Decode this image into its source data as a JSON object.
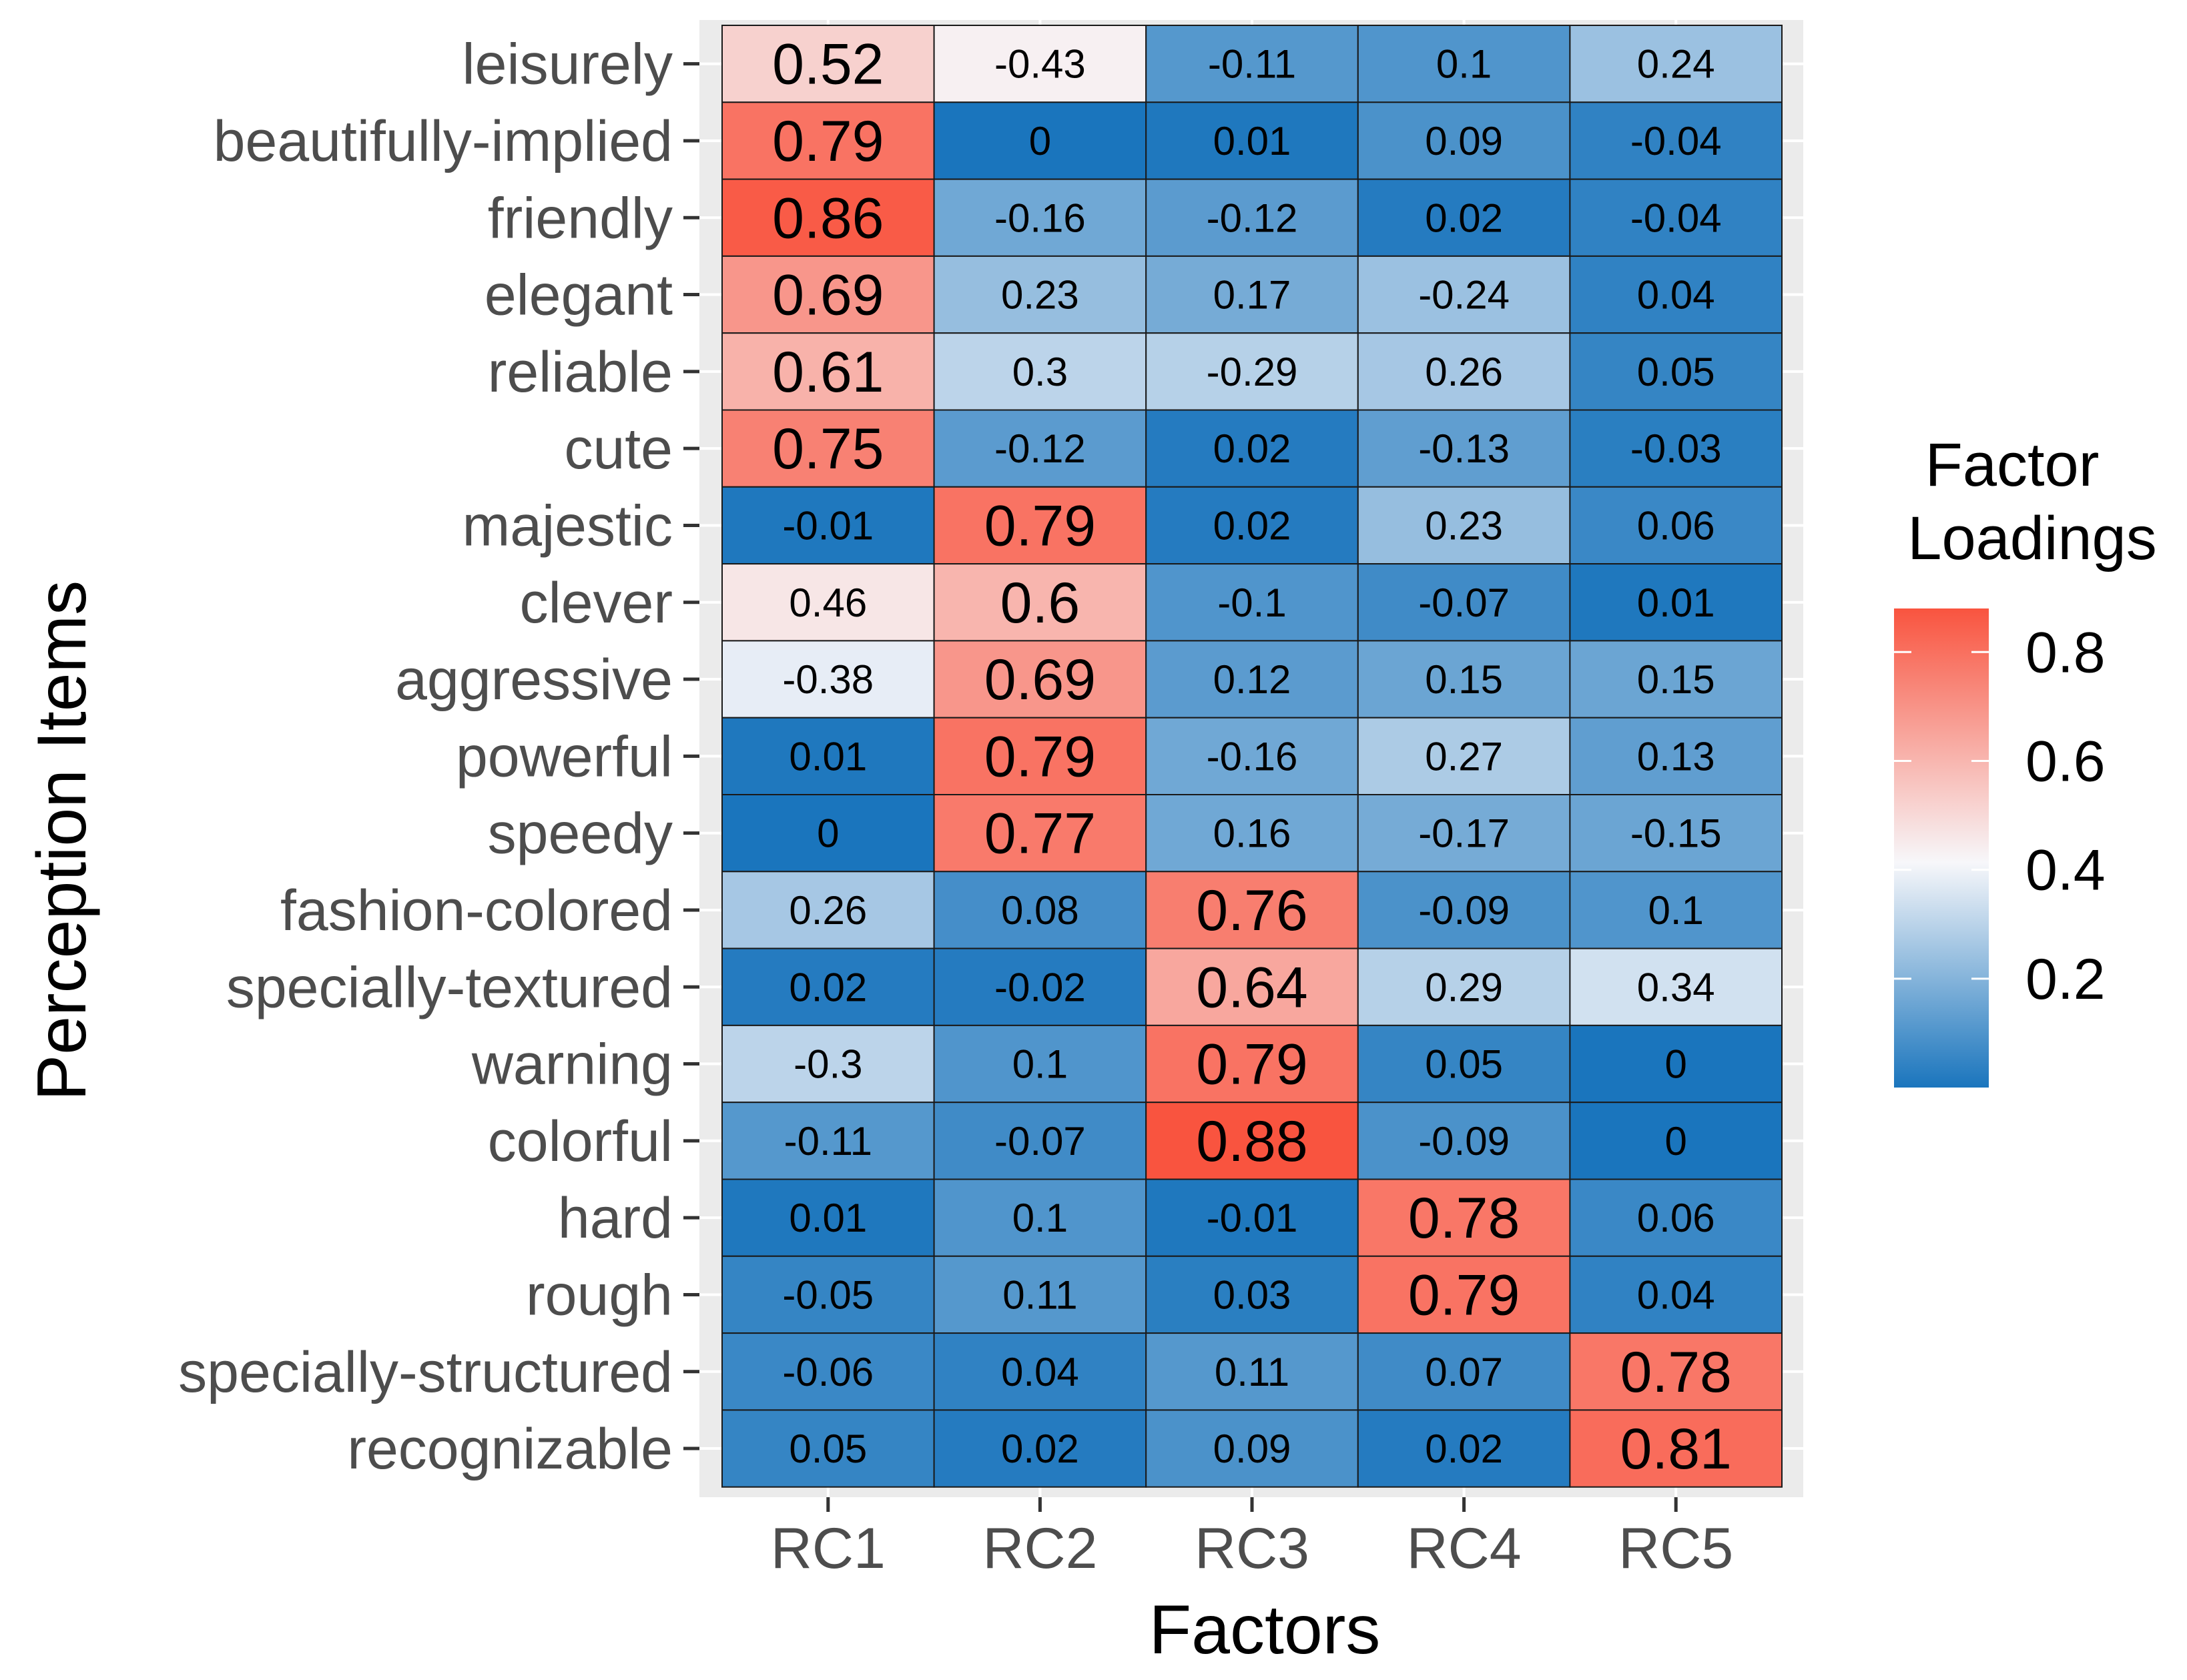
{
  "chart_data": {
    "type": "heatmap",
    "title": "",
    "xlabel": "Factors",
    "ylabel": "Perception Items",
    "x_categories": [
      "RC1",
      "RC2",
      "RC3",
      "RC4",
      "RC5"
    ],
    "y_categories": [
      "leisurely",
      "beautifully-implied",
      "friendly",
      "elegant",
      "reliable",
      "cute",
      "majestic",
      "clever",
      "aggressive",
      "powerful",
      "speedy",
      "fashion-colored",
      "specially-textured",
      "warning",
      "colorful",
      "hard",
      "rough",
      "specially-structured",
      "recognizable"
    ],
    "values": [
      [
        0.52,
        -0.43,
        -0.11,
        0.1,
        0.24
      ],
      [
        0.79,
        0,
        0.01,
        0.09,
        -0.04
      ],
      [
        0.86,
        -0.16,
        -0.12,
        0.02,
        -0.04
      ],
      [
        0.69,
        0.23,
        0.17,
        -0.24,
        0.04
      ],
      [
        0.61,
        0.3,
        -0.29,
        0.26,
        0.05
      ],
      [
        0.75,
        -0.12,
        0.02,
        -0.13,
        -0.03
      ],
      [
        -0.01,
        0.79,
        0.02,
        0.23,
        0.06
      ],
      [
        0.46,
        0.6,
        -0.1,
        -0.07,
        0.01
      ],
      [
        -0.38,
        0.69,
        0.12,
        0.15,
        0.15
      ],
      [
        0.01,
        0.79,
        -0.16,
        0.27,
        0.13
      ],
      [
        0,
        0.77,
        0.16,
        -0.17,
        -0.15
      ],
      [
        0.26,
        0.08,
        0.76,
        -0.09,
        0.1
      ],
      [
        0.02,
        -0.02,
        0.64,
        0.29,
        0.34
      ],
      [
        -0.3,
        0.1,
        0.79,
        0.05,
        0
      ],
      [
        -0.11,
        -0.07,
        0.88,
        -0.09,
        0
      ],
      [
        0.01,
        0.1,
        -0.01,
        0.78,
        0.06
      ],
      [
        -0.05,
        0.11,
        0.03,
        0.79,
        0.04
      ],
      [
        -0.06,
        0.04,
        0.11,
        0.07,
        0.78
      ],
      [
        0.05,
        0.02,
        0.09,
        0.02,
        0.81
      ]
    ],
    "color_metric": "absolute loading",
    "legend": {
      "title_lines": [
        "Factor",
        "Loadings"
      ],
      "ticks": [
        0.8,
        0.6,
        0.4,
        0.2
      ],
      "range": [
        0,
        0.88
      ],
      "position": "right"
    },
    "colors": {
      "low": "#1a75bd",
      "mid": "#f7f7fa",
      "high": "#f9543f",
      "panel_bg": "#ebebeb"
    },
    "large_label_threshold": 0.5,
    "grid": false
  }
}
